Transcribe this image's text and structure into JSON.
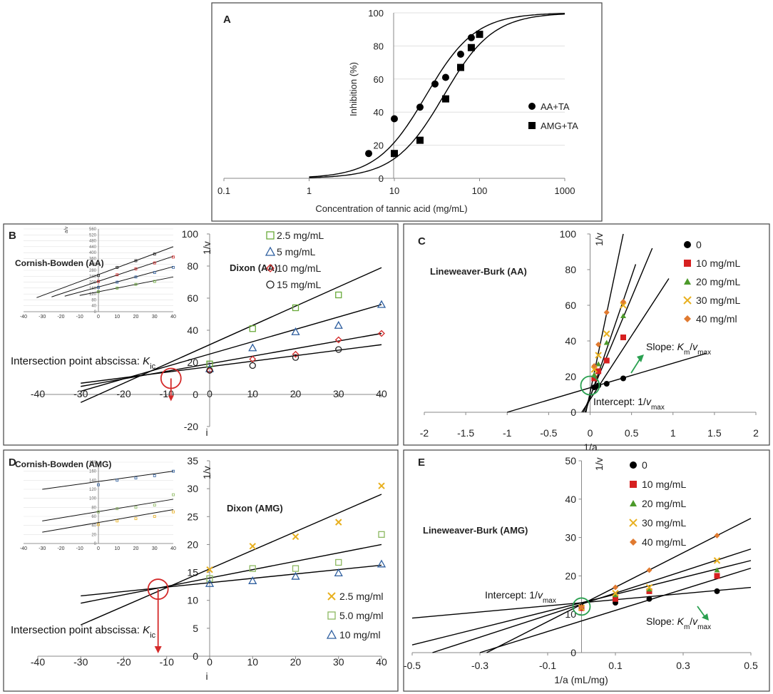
{
  "chart_data": [
    {
      "id": "A",
      "panel_label": "A",
      "type": "scatter",
      "xscale": "log",
      "xlim": [
        0.1,
        1000
      ],
      "ylim": [
        0,
        100
      ],
      "xticks": [
        "0.1",
        "1",
        "10",
        "100",
        "1000"
      ],
      "yticks": [
        "0",
        "20",
        "40",
        "60",
        "80",
        "100"
      ],
      "xlabel": "Concentration of tannic acid (mg/mL)",
      "ylabel": "Inhibition (%)",
      "legend": [
        {
          "name": "AA+TA",
          "marker": "circle"
        },
        {
          "name": "AMG+TA",
          "marker": "square"
        }
      ],
      "series": [
        {
          "name": "AA+TA",
          "marker": "circle",
          "x": [
            5,
            10,
            20,
            30,
            40,
            60,
            80
          ],
          "y": [
            15,
            36,
            43,
            57,
            61,
            75,
            85
          ],
          "fit": {
            "ic50": 23.5,
            "hill": 1.5
          }
        },
        {
          "name": "AMG+TA",
          "marker": "square",
          "x": [
            10,
            20,
            40,
            60,
            80,
            100
          ],
          "y": [
            15,
            23,
            48,
            67,
            79,
            87
          ],
          "fit": {
            "ic50": 38,
            "hill": 1.5
          }
        }
      ]
    },
    {
      "id": "B",
      "panel_label": "B",
      "type": "scatter",
      "title": "Dixon (AA)",
      "xlim": [
        -40,
        40
      ],
      "ylim": [
        -20,
        100
      ],
      "xticks": [
        "-40",
        "-30",
        "-20",
        "-10",
        "0",
        "10",
        "20",
        "30",
        "40"
      ],
      "yticks": [
        "-20",
        "0",
        "20",
        "40",
        "60",
        "80",
        "100"
      ],
      "xlabel": "i",
      "ylabel": "1/v",
      "annotation": {
        "prefix": "Intersection point abscissa: ",
        "sym": "K",
        "sub": "ic"
      },
      "intersection": [
        -9,
        10
      ],
      "series": [
        {
          "name": "2.5 mg/mL",
          "marker": "square",
          "color": "#6aaa3a",
          "x": [
            0,
            10,
            20,
            30
          ],
          "y": [
            19,
            41,
            54,
            62
          ],
          "line": [
            [
              -30,
              -5
            ],
            [
              40,
              79
            ]
          ]
        },
        {
          "name": "5 mg/mL",
          "marker": "triangle",
          "color": "#2f5f9f",
          "x": [
            0,
            10,
            20,
            30,
            40
          ],
          "y": [
            16,
            29,
            39,
            43,
            56
          ],
          "line": [
            [
              -30,
              2
            ],
            [
              40,
              56
            ]
          ]
        },
        {
          "name": "10 mg/mL",
          "marker": "diamond",
          "color": "#d42a2a",
          "x": [
            0,
            10,
            20,
            30,
            40
          ],
          "y": [
            15,
            22,
            25,
            34,
            38
          ],
          "line": [
            [
              -30,
              5
            ],
            [
              40,
              38
            ]
          ]
        },
        {
          "name": "15 mg/mL",
          "marker": "circle",
          "color": "#222222",
          "x": [
            0,
            10,
            20,
            30
          ],
          "y": [
            15,
            18,
            23,
            28
          ],
          "line": [
            [
              -30,
              7
            ],
            [
              40,
              31
            ]
          ]
        }
      ]
    },
    {
      "id": "B-inset",
      "type": "scatter",
      "title": "Cornish-Bowden (AA)",
      "xlim": [
        -40,
        40
      ],
      "ylim": [
        0,
        560
      ],
      "xticks": [
        "-40",
        "-30",
        "-20",
        "-10",
        "0",
        "10",
        "20",
        "30",
        "40"
      ],
      "yticks": [
        "0",
        "20",
        "40",
        "60",
        "80",
        "100",
        "120",
        "140",
        "160",
        "180",
        "200",
        "220",
        "240",
        "260",
        "280",
        "300",
        "320",
        "340",
        "360",
        "380",
        "400",
        "420",
        "440",
        "460",
        "480",
        "500",
        "520",
        "540",
        "560"
      ],
      "ylabel": "a/v",
      "series": [
        {
          "name": "2.5 mg/mL",
          "color": "#6aaa3a",
          "x": [
            0,
            10,
            20,
            30
          ],
          "y": [
            135,
            160,
            185,
            205
          ],
          "line": [
            [
              -10,
              110
            ],
            [
              40,
              235
            ]
          ]
        },
        {
          "name": "5 mg/mL",
          "color": "#2f5f9f",
          "x": [
            0,
            10,
            20,
            30,
            40
          ],
          "y": [
            165,
            200,
            235,
            265,
            300
          ],
          "line": [
            [
              -18,
              105
            ],
            [
              40,
              305
            ]
          ]
        },
        {
          "name": "10 mg/mL",
          "color": "#d42a2a",
          "x": [
            0,
            10,
            20,
            30,
            40
          ],
          "y": [
            205,
            250,
            290,
            330,
            370
          ],
          "line": [
            [
              -25,
              100
            ],
            [
              40,
              375
            ]
          ]
        },
        {
          "name": "15 mg/mL",
          "color": "#222222",
          "x": [
            0,
            10,
            20,
            30
          ],
          "y": [
            245,
            300,
            345,
            390
          ],
          "line": [
            [
              -33,
              95
            ],
            [
              40,
              440
            ]
          ]
        }
      ]
    },
    {
      "id": "C",
      "panel_label": "C",
      "type": "scatter",
      "title": "Lineweaver-Burk (AA)",
      "xlim": [
        -2,
        2
      ],
      "ylim": [
        0,
        100
      ],
      "xticks": [
        "-2",
        "-1.5",
        "-1",
        "-0.5",
        "0",
        "0.5",
        "1",
        "1.5",
        "2"
      ],
      "yticks": [
        "0",
        "20",
        "40",
        "60",
        "80",
        "100"
      ],
      "xlabel": "1/a",
      "ylabel": "1/v",
      "slope_label": {
        "prefix": "Slope: ",
        "km": "K",
        "km_sub": "m",
        "slash": "/",
        "v": "v",
        "v_sub": "max"
      },
      "intercept_label": {
        "prefix": "Intercept: 1/",
        "v": "v",
        "v_sub": "max"
      },
      "intersection": [
        0,
        15
      ],
      "series": [
        {
          "name": "0",
          "marker": "circle",
          "color": "#000000",
          "x": [
            0.05,
            0.1,
            0.2,
            0.4
          ],
          "y": [
            14,
            15,
            16,
            19
          ],
          "line": [
            [
              -1,
              0
            ],
            [
              1.4,
              33
            ]
          ]
        },
        {
          "name": "10 mg/mL",
          "marker": "square",
          "color": "#d62020",
          "x": [
            0.05,
            0.1,
            0.2,
            0.4
          ],
          "y": [
            19,
            23,
            29,
            42
          ],
          "line": [
            [
              -0.1,
              0
            ],
            [
              0.95,
              75
            ]
          ]
        },
        {
          "name": "20 mg/mL",
          "marker": "triangle",
          "color": "#4c9a2a",
          "x": [
            0.05,
            0.1,
            0.2,
            0.4
          ],
          "y": [
            21,
            27,
            39,
            54
          ],
          "line": [
            [
              -0.08,
              0
            ],
            [
              0.75,
              92
            ]
          ]
        },
        {
          "name": "30 mg/mL",
          "marker": "cross",
          "color": "#e8b020",
          "x": [
            0.05,
            0.1,
            0.2,
            0.4
          ],
          "y": [
            24,
            32,
            44,
            60
          ],
          "line": [
            [
              -0.06,
              0
            ],
            [
              0.55,
              83
            ]
          ]
        },
        {
          "name": "40 mg/ml",
          "marker": "diamond",
          "color": "#e07a30",
          "x": [
            0.05,
            0.1,
            0.2,
            0.4
          ],
          "y": [
            26,
            38,
            56,
            62
          ],
          "line": [
            [
              -0.05,
              0
            ],
            [
              0.4,
              100
            ]
          ]
        }
      ]
    },
    {
      "id": "D",
      "panel_label": "D",
      "type": "scatter",
      "title": "Dixon (AMG)",
      "xlim": [
        -40,
        40
      ],
      "ylim": [
        0,
        35
      ],
      "xticks": [
        "-40",
        "-30",
        "-20",
        "-10",
        "0",
        "10",
        "20",
        "30",
        "40"
      ],
      "yticks": [
        "0",
        "5",
        "10",
        "15",
        "20",
        "25",
        "30",
        "35"
      ],
      "xlabel": "i",
      "ylabel": "1/v",
      "annotation": {
        "prefix": "Intersection point abscissa: ",
        "sym": "K",
        "sub": "ic"
      },
      "intersection": [
        -12,
        12
      ],
      "series": [
        {
          "name": "2.5 mg/ml",
          "marker": "cross",
          "color": "#e8b020",
          "x": [
            0,
            10,
            20,
            30,
            40
          ],
          "y": [
            15.5,
            19.7,
            21.4,
            24,
            30.5
          ],
          "line": [
            [
              -30,
              5.6
            ],
            [
              40,
              29
            ]
          ]
        },
        {
          "name": "5.0 mg/ml",
          "marker": "square",
          "color": "#8cb860",
          "x": [
            0,
            10,
            20,
            30,
            40
          ],
          "y": [
            13.9,
            15.7,
            15.7,
            16.8,
            21.8
          ],
          "line": [
            [
              -30,
              9.5
            ],
            [
              40,
              20
            ]
          ]
        },
        {
          "name": "10 mg/ml",
          "marker": "triangle",
          "color": "#2f5f9f",
          "x": [
            0,
            10,
            20,
            30,
            40
          ],
          "y": [
            13,
            13.5,
            14.3,
            14.9,
            16.5
          ],
          "line": [
            [
              -30,
              10.8
            ],
            [
              40,
              16.3
            ]
          ]
        }
      ]
    },
    {
      "id": "D-inset",
      "type": "scatter",
      "title": "Cornish-Bowden (AMG)",
      "xlim": [
        -40,
        40
      ],
      "ylim": [
        0,
        180
      ],
      "xticks": [
        "-40",
        "-30",
        "-20",
        "-10",
        "0",
        "10",
        "20",
        "30",
        "40"
      ],
      "yticks": [
        "0",
        "20",
        "40",
        "60",
        "80",
        "100",
        "120",
        "140",
        "160",
        "180"
      ],
      "series": [
        {
          "name": "2.5 mg/ml",
          "color": "#e8b020",
          "x": [
            0,
            10,
            20,
            30,
            40
          ],
          "y": [
            42,
            50,
            55,
            60,
            70
          ],
          "line": [
            [
              -30,
              25
            ],
            [
              40,
              75
            ]
          ]
        },
        {
          "name": "5.0 mg/ml",
          "color": "#8cb860",
          "x": [
            0,
            10,
            20,
            30,
            40
          ],
          "y": [
            70,
            77,
            80,
            85,
            108
          ],
          "line": [
            [
              -30,
              50
            ],
            [
              40,
              98
            ]
          ]
        },
        {
          "name": "10 mg/ml",
          "color": "#2f5f9f",
          "x": [
            0,
            10,
            20,
            30,
            40
          ],
          "y": [
            130,
            140,
            145,
            150,
            160
          ],
          "line": [
            [
              -30,
              120
            ],
            [
              40,
              160
            ]
          ]
        }
      ]
    },
    {
      "id": "E",
      "panel_label": "E",
      "type": "scatter",
      "title": "Lineweaver-Burk (AMG)",
      "xlim": [
        -0.5,
        0.5
      ],
      "ylim": [
        0,
        50
      ],
      "xticks": [
        "-0.5",
        "-0.3",
        "-0.1",
        "0.1",
        "0.3",
        "0.5"
      ],
      "yticks": [
        "0",
        "10",
        "20",
        "30",
        "40",
        "50"
      ],
      "xlabel": "1/a (mL/mg)",
      "ylabel": "1/v",
      "slope_label": {
        "prefix": "Slope: ",
        "km": "K",
        "km_sub": "m",
        "slash": "/",
        "v": "v",
        "v_sub": "max"
      },
      "intercept_label": {
        "prefix": "Intercept: 1/",
        "v": "v",
        "v_sub": "max"
      },
      "intersection": [
        0,
        12
      ],
      "series": [
        {
          "name": "0",
          "marker": "circle",
          "color": "#000000",
          "x": [
            0,
            0.1,
            0.2,
            0.4
          ],
          "y": [
            11.9,
            13,
            14,
            16
          ],
          "line": [
            [
              -0.5,
              9
            ],
            [
              0.5,
              17
            ]
          ]
        },
        {
          "name": "10 mg/mL",
          "marker": "square",
          "color": "#d62020",
          "x": [
            0,
            0.1,
            0.2,
            0.4
          ],
          "y": [
            11.6,
            14,
            16,
            20
          ],
          "line": [
            [
              -0.5,
              2
            ],
            [
              0.5,
              24
            ]
          ]
        },
        {
          "name": "20 mg/mL",
          "marker": "triangle",
          "color": "#4c9a2a",
          "x": [
            0,
            0.1,
            0.2,
            0.4
          ],
          "y": [
            11.8,
            15,
            16.5,
            21.5
          ],
          "line": [
            [
              -0.3,
              0
            ],
            [
              0.5,
              22
            ]
          ]
        },
        {
          "name": "30 mg/mL",
          "marker": "cross",
          "color": "#e8b020",
          "x": [
            0,
            0.1,
            0.2,
            0.4
          ],
          "y": [
            11.7,
            15.5,
            17,
            24
          ],
          "line": [
            [
              -0.44,
              0
            ],
            [
              0.5,
              27
            ]
          ]
        },
        {
          "name": "40 mg/mL",
          "marker": "diamond",
          "color": "#e07a30",
          "x": [
            0,
            0.1,
            0.2,
            0.4
          ],
          "y": [
            11.9,
            17,
            21.5,
            30.5
          ],
          "line": [
            [
              -0.28,
              0
            ],
            [
              0.5,
              35
            ]
          ]
        }
      ]
    }
  ]
}
